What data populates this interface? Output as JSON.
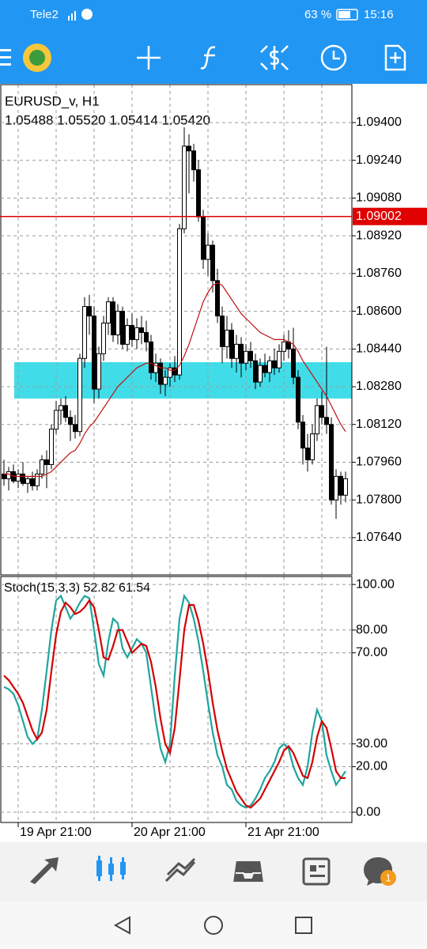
{
  "status_bar": {
    "carrier": "Tele2",
    "battery": "63 %",
    "time": "15:16"
  },
  "chart_data": [
    {
      "type": "candlestick",
      "title": "EURUSD_v, H1",
      "subtitle": "1.05488 1.05520 1.05414 1.05420",
      "categories": [
        null,
        null,
        null,
        "19 Apr 21:00",
        null,
        null,
        null,
        null,
        null,
        null,
        null,
        null,
        null,
        null,
        null,
        null,
        null,
        null,
        null,
        null,
        null,
        null,
        null,
        null,
        null,
        null,
        null,
        "20 Apr 21:00",
        null,
        null,
        null,
        null,
        null,
        null,
        null,
        null,
        null,
        null,
        null,
        null,
        null,
        null,
        null,
        null,
        null,
        null,
        null,
        null,
        null,
        null,
        null,
        "21 Apr 21:00",
        null,
        null,
        null,
        null,
        null,
        null,
        null,
        null,
        null,
        null,
        null,
        null,
        null,
        null,
        null,
        null,
        null,
        null,
        null,
        null,
        null
      ],
      "open": [
        1.0791,
        1.0789,
        1.0792,
        1.0788,
        1.0791,
        1.0787,
        1.0789,
        1.0786,
        1.0791,
        1.0797,
        1.0795,
        1.081,
        1.0818,
        1.082,
        1.0815,
        1.0812,
        1.0809,
        1.084,
        1.0862,
        1.0858,
        1.0827,
        1.0842,
        1.0855,
        1.0864,
        1.085,
        1.086,
        1.0846,
        1.0854,
        1.0848,
        1.0853,
        1.0851,
        1.0847,
        1.0834,
        1.0838,
        1.0829,
        1.0832,
        1.0836,
        1.0833,
        1.0895,
        1.093,
        1.0928,
        1.092,
        1.09,
        1.0882,
        1.0888,
        1.0873,
        1.0858,
        1.0845,
        1.0852,
        1.084,
        1.0846,
        1.0838,
        1.0843,
        1.0839,
        1.083,
        1.0837,
        1.0834,
        1.0839,
        1.0836,
        1.0843,
        1.0847,
        1.0844,
        1.0832,
        1.0813,
        1.0802,
        1.0797,
        1.0808,
        1.082,
        1.0815,
        1.0812,
        1.078,
        1.079,
        1.0782
      ],
      "high": [
        1.0797,
        1.0794,
        1.0795,
        1.0793,
        1.0796,
        1.079,
        1.0792,
        1.0793,
        1.0799,
        1.0801,
        1.0812,
        1.0822,
        1.0823,
        1.0824,
        1.0818,
        1.0816,
        1.0842,
        1.0866,
        1.0867,
        1.0862,
        1.0845,
        1.0858,
        1.0866,
        1.0866,
        1.0863,
        1.0862,
        1.0857,
        1.0859,
        1.0857,
        1.0858,
        1.0856,
        1.085,
        1.0842,
        1.084,
        1.0835,
        1.0838,
        1.0841,
        1.0897,
        1.0938,
        1.0935,
        1.0931,
        1.0924,
        1.0903,
        1.0893,
        1.089,
        1.0878,
        1.0862,
        1.0858,
        1.0855,
        1.085,
        1.0849,
        1.0846,
        1.0847,
        1.0842,
        1.084,
        1.0842,
        1.0841,
        1.0844,
        1.0846,
        1.085,
        1.0852,
        1.0853,
        1.0835,
        1.0816,
        1.0808,
        1.0812,
        1.0823,
        1.0826,
        1.0845,
        1.0815,
        1.0793,
        1.0792,
        1.0792
      ],
      "low": [
        1.0786,
        1.0784,
        1.0787,
        1.0785,
        1.0786,
        1.0783,
        1.0784,
        1.0784,
        1.0789,
        1.0785,
        1.0793,
        1.0808,
        1.0812,
        1.0813,
        1.0805,
        1.0806,
        1.0807,
        1.0836,
        1.085,
        1.0821,
        1.0823,
        1.0839,
        1.085,
        1.0847,
        1.0846,
        1.0844,
        1.0843,
        1.0845,
        1.0844,
        1.0846,
        1.0843,
        1.0831,
        1.083,
        1.0825,
        1.0824,
        1.0828,
        1.083,
        1.0831,
        1.0893,
        1.091,
        1.0915,
        1.0898,
        1.0878,
        1.0875,
        1.0868,
        1.0855,
        1.0838,
        1.084,
        1.0836,
        1.0834,
        1.0832,
        1.0835,
        1.0836,
        1.0827,
        1.0828,
        1.0832,
        1.083,
        1.0833,
        1.0834,
        1.0839,
        1.084,
        1.0829,
        1.081,
        1.0795,
        1.0792,
        1.0795,
        1.0805,
        1.0812,
        1.0808,
        1.0778,
        1.0772,
        1.0778,
        1.0779
      ],
      "close": [
        1.0789,
        1.0792,
        1.0788,
        1.0791,
        1.0787,
        1.0789,
        1.0786,
        1.0791,
        1.0797,
        1.0795,
        1.081,
        1.0818,
        1.082,
        1.0815,
        1.0812,
        1.0809,
        1.084,
        1.0862,
        1.0858,
        1.0827,
        1.0842,
        1.0855,
        1.0864,
        1.085,
        1.086,
        1.0846,
        1.0854,
        1.0848,
        1.0853,
        1.0851,
        1.0847,
        1.0834,
        1.0838,
        1.0829,
        1.0832,
        1.0836,
        1.0833,
        1.0895,
        1.093,
        1.0928,
        1.092,
        1.09,
        1.0882,
        1.0888,
        1.0873,
        1.0858,
        1.0845,
        1.0852,
        1.084,
        1.0846,
        1.0838,
        1.0843,
        1.0839,
        1.083,
        1.0837,
        1.0834,
        1.0839,
        1.0836,
        1.0843,
        1.0847,
        1.0844,
        1.0832,
        1.0813,
        1.0802,
        1.0797,
        1.0808,
        1.082,
        1.0815,
        1.0812,
        1.078,
        1.079,
        1.0782,
        1.0789
      ],
      "up_color": "#ffffff",
      "down_color": "#000000",
      "ma": {
        "color": "#c01010",
        "values": [
          1.0791,
          1.0791,
          1.079,
          1.079,
          1.079,
          1.079,
          1.079,
          1.079,
          1.079,
          1.0791,
          1.0792,
          1.0794,
          1.0796,
          1.0798,
          1.08,
          1.0801,
          1.0804,
          1.0808,
          1.0811,
          1.0813,
          1.0816,
          1.0819,
          1.0822,
          1.0825,
          1.0828,
          1.083,
          1.0832,
          1.0834,
          1.0836,
          1.0837,
          1.0838,
          1.0838,
          1.0837,
          1.0836,
          1.0836,
          1.0835,
          1.0835,
          1.0837,
          1.0841,
          1.0846,
          1.0852,
          1.0858,
          1.0864,
          1.0868,
          1.0871,
          1.0872,
          1.0871,
          1.0868,
          1.0865,
          1.0862,
          1.0859,
          1.0857,
          1.0855,
          1.0853,
          1.0851,
          1.085,
          1.0849,
          1.0848,
          1.0848,
          1.0848,
          1.0847,
          1.0846,
          1.0843,
          1.0839,
          1.0836,
          1.0833,
          1.083,
          1.0827,
          1.0824,
          1.082,
          1.0816,
          1.0812,
          1.0809
        ]
      },
      "price_line": {
        "value": 1.09002,
        "color": "#e00000"
      },
      "zone": {
        "from": 1.0823,
        "to": 1.08384,
        "color": "#40dde9"
      },
      "ylim": [
        1.07482,
        1.09561
      ],
      "yticks": [
        {
          "value": 1.094,
          "label": "1.09400"
        },
        {
          "value": 1.0924,
          "label": "1.09240"
        },
        {
          "value": 1.0908,
          "label": "1.09080"
        },
        {
          "value": 1.0892,
          "label": "1.08920"
        },
        {
          "value": 1.0876,
          "label": "1.08760"
        },
        {
          "value": 1.086,
          "label": "1.08600"
        },
        {
          "value": 1.0844,
          "label": "1.08440"
        },
        {
          "value": 1.0828,
          "label": "1.08280"
        },
        {
          "value": 1.0812,
          "label": "1.08120"
        },
        {
          "value": 1.0796,
          "label": "1.07960"
        },
        {
          "value": 1.078,
          "label": "1.07800"
        },
        {
          "value": 1.0764,
          "label": "1.07640"
        }
      ],
      "grid": true
    },
    {
      "type": "line",
      "title": "Stoch(15,3,3) 52.82 61.54",
      "series": [
        {
          "color": "#1fa59d",
          "values": [
            55,
            54,
            52,
            47,
            40,
            33,
            30,
            32,
            45,
            62,
            80,
            93,
            95,
            90,
            85,
            88,
            92,
            95,
            94,
            80,
            65,
            60,
            75,
            85,
            83,
            72,
            68,
            72,
            76,
            74,
            70,
            55,
            40,
            28,
            22,
            30,
            60,
            85,
            95,
            92,
            85,
            75,
            62,
            48,
            35,
            25,
            20,
            12,
            10,
            5,
            3,
            2,
            3,
            6,
            10,
            15,
            18,
            22,
            28,
            30,
            28,
            20,
            15,
            12,
            20,
            35,
            45,
            40,
            25,
            18,
            12,
            15,
            18
          ]
        },
        {
          "color": "#d40000",
          "values": [
            60,
            58,
            55,
            52,
            48,
            42,
            36,
            32,
            35,
            45,
            62,
            78,
            88,
            92,
            90,
            87,
            88,
            90,
            93,
            90,
            80,
            68,
            67,
            73,
            80,
            80,
            75,
            70,
            72,
            74,
            73,
            66,
            55,
            41,
            30,
            26,
            37,
            58,
            80,
            91,
            91,
            84,
            74,
            62,
            48,
            36,
            27,
            19,
            14,
            9,
            6,
            3,
            2,
            4,
            6,
            10,
            14,
            18,
            22,
            27,
            29,
            26,
            21,
            16,
            15,
            22,
            33,
            40,
            37,
            28,
            18,
            15,
            15
          ]
        }
      ],
      "ylim": [
        -4.5,
        103.5
      ],
      "yticks": [
        {
          "value": 0,
          "label": "0.00"
        },
        {
          "value": 20,
          "label": "20.00"
        },
        {
          "value": 30,
          "label": "30.00"
        },
        {
          "value": 70,
          "label": "70.00"
        },
        {
          "value": 80,
          "label": "80.00"
        },
        {
          "value": 100,
          "label": "100.00"
        }
      ],
      "grid": true
    }
  ]
}
